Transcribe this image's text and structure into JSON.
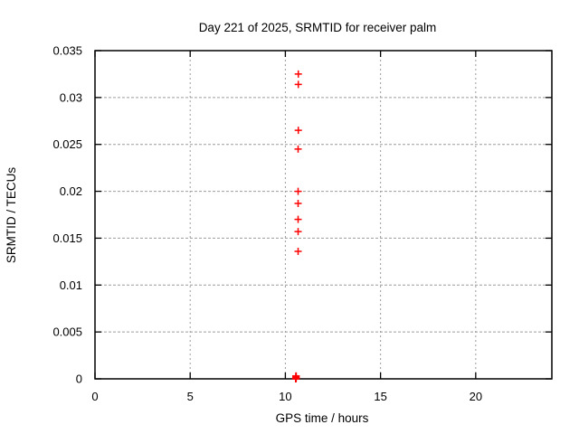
{
  "chart_data": {
    "type": "scatter",
    "title": "Day 221 of 2025, SRMTID for receiver palm",
    "xlabel": "GPS time / hours",
    "ylabel": "SRMTID / TECUs",
    "xlim": [
      0,
      24
    ],
    "ylim": [
      0,
      0.035
    ],
    "xticks": {
      "values": [
        0,
        5,
        10,
        15,
        20
      ],
      "labels": [
        "0",
        "5",
        "10",
        "15",
        "20"
      ]
    },
    "yticks": {
      "values": [
        0,
        0.005,
        0.01,
        0.015,
        0.02,
        0.025,
        0.03,
        0.035
      ],
      "labels": [
        "0",
        "0.005",
        "0.01",
        "0.015",
        "0.02",
        "0.025",
        "0.03",
        "0.035"
      ]
    },
    "grid": true,
    "legend": "none",
    "marker": "plus",
    "colors": {
      "marker": "#ff0000",
      "axis": "#000000",
      "grid": "#9c9c9c",
      "text": "#000000",
      "background": "#ffffff"
    },
    "series": [
      {
        "marker": "plus",
        "color": "#ff0000",
        "points": [
          [
            10.68,
            0.0325
          ],
          [
            10.68,
            0.0314
          ],
          [
            10.68,
            0.0265
          ],
          [
            10.67,
            0.0245
          ],
          [
            10.67,
            0.02
          ],
          [
            10.67,
            0.0187
          ],
          [
            10.67,
            0.017
          ],
          [
            10.67,
            0.0157
          ],
          [
            10.67,
            0.0136
          ],
          [
            10.54,
            0.0
          ],
          [
            10.55,
            0.0001
          ],
          [
            10.55,
            0.0003
          ],
          [
            10.56,
            0.0
          ],
          [
            10.56,
            0.0002
          ],
          [
            10.57,
            0.0001
          ],
          [
            10.57,
            0.0003
          ]
        ],
        "note": "dense cluster of overlapping markers at y≈0, x≈10.5–10.6"
      }
    ]
  }
}
